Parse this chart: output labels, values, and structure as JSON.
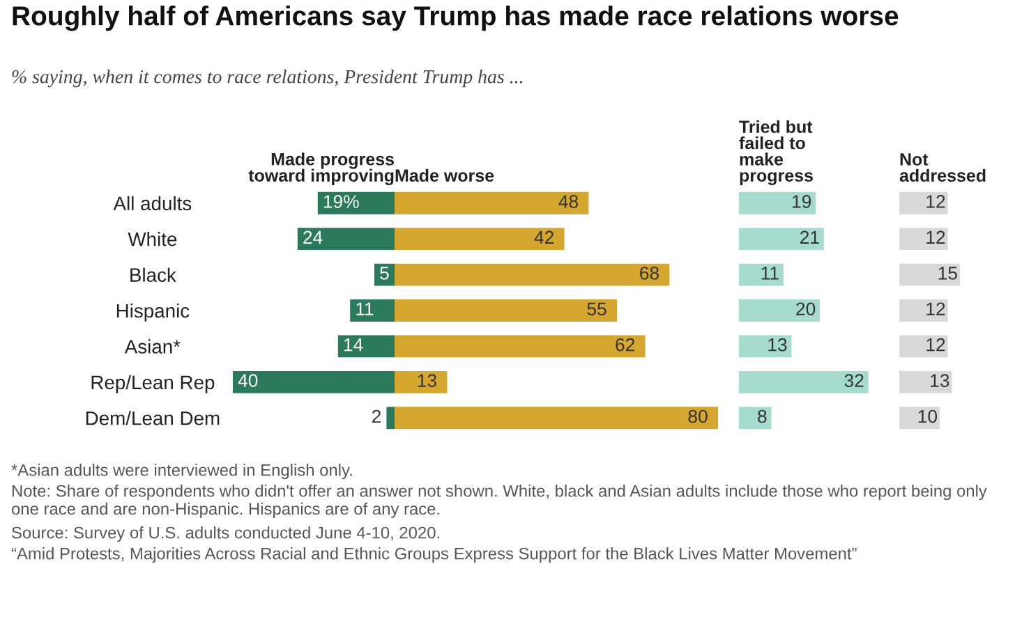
{
  "chart_data": [
    {
      "type": "bar",
      "orientation": "horizontal",
      "title": "Roughly half of Americans say Trump has made race relations worse",
      "subtitle": "% saying, when it comes to race relations, President Trump has ...",
      "categories": [
        "All adults",
        "White",
        "Black",
        "Hispanic",
        "Asian*",
        "Rep/Lean Rep",
        "Dem/Lean Dem"
      ],
      "tick_labels": "y",
      "grid": false,
      "legend": false,
      "data_labels": true,
      "series": [
        {
          "name": "Made progress\ntoward improving",
          "color": "#2b7a5c",
          "values": [
            19,
            24,
            5,
            11,
            14,
            40,
            2
          ],
          "value_labels": [
            "19%",
            "24",
            "5",
            "11",
            "14",
            "40",
            "2"
          ]
        }
      ],
      "annotations": [
        "*Asian adults were interviewed in English only.",
        "Note: Share of respondents who didn't offer an answer not shown. White, black and Asian adults include those who report being only one race and are non-Hispanic. Hispanics are of any race.",
        "Source: Survey of U.S. adults conducted June 4-10, 2020.",
        "“Amid Protests, Majorities Across Racial and Ethnic Groups Express Support for the Black Lives Matter Movement”"
      ]
    },
    {
      "type": "bar",
      "orientation": "horizontal",
      "tick_labels": false,
      "grid": false,
      "legend": false,
      "data_labels": true,
      "series": [
        {
          "name": "Made worse",
          "color": "#d6a72e",
          "values": [
            48,
            42,
            68,
            55,
            62,
            13,
            80
          ]
        }
      ]
    },
    {
      "type": "bar",
      "orientation": "horizontal",
      "tick_labels": false,
      "grid": false,
      "legend": false,
      "data_labels": true,
      "series": [
        {
          "name": "Tried but\nfailed to\nmake\nprogress",
          "color": "#a6dccd",
          "values": [
            19,
            21,
            11,
            20,
            13,
            32,
            8
          ]
        }
      ]
    },
    {
      "type": "bar",
      "orientation": "horizontal",
      "tick_labels": false,
      "grid": false,
      "legend": false,
      "data_labels": true,
      "series": [
        {
          "name": "Not\naddressed",
          "color": "#d9d9d9",
          "values": [
            12,
            12,
            15,
            12,
            12,
            13,
            10
          ]
        }
      ]
    }
  ]
}
